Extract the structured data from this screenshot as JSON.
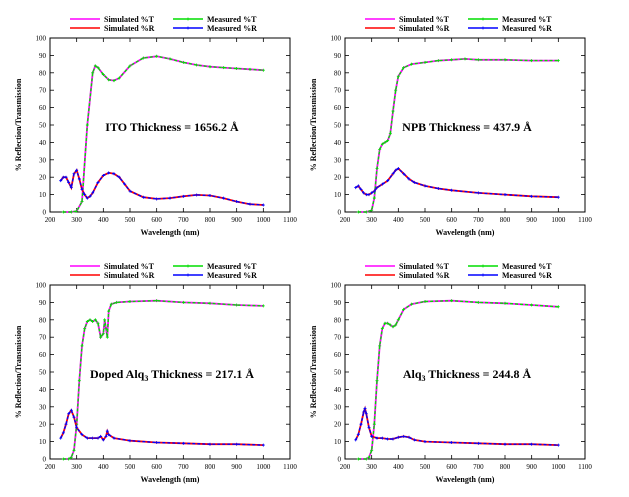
{
  "chart_data": [
    {
      "type": "line",
      "annotation": "ITO Thickness = 1656.2 Å",
      "xlabel": "Wavelength (nm)",
      "ylabel": "% Reflection/Transmission",
      "xlim": [
        200,
        1100
      ],
      "ylim": [
        0,
        100
      ],
      "xticks": [
        "200",
        "300",
        "400",
        "500",
        "600",
        "700",
        "800",
        "900",
        "1000",
        "1100"
      ],
      "yticks": [
        "0",
        "10",
        "20",
        "30",
        "40",
        "50",
        "60",
        "70",
        "80",
        "90",
        "100"
      ],
      "legend": [
        "Simulated %T",
        "Measured %T",
        "Simulated %R",
        "Measured %R"
      ],
      "series": [
        {
          "name": "Simulated %T",
          "color": "#ff00ff",
          "kind": "T",
          "x": [
            250,
            280,
            300,
            320,
            340,
            360,
            370,
            380,
            400,
            420,
            440,
            460,
            500,
            550,
            600,
            650,
            700,
            750,
            800,
            850,
            900,
            950,
            1000
          ],
          "y": [
            0,
            0,
            0.5,
            6,
            50,
            80,
            84,
            83,
            79,
            76,
            75.5,
            77,
            84,
            88.5,
            89.5,
            88,
            86,
            84.5,
            83.5,
            83,
            82.5,
            82,
            81.5
          ]
        },
        {
          "name": "Measured %T",
          "color": "#00dd00",
          "kind": "T",
          "x": [
            250,
            280,
            300,
            320,
            340,
            360,
            370,
            380,
            400,
            420,
            440,
            460,
            500,
            550,
            600,
            650,
            700,
            750,
            800,
            850,
            900,
            950,
            1000
          ],
          "y": [
            0,
            0,
            0.5,
            6,
            50,
            80,
            84,
            83,
            79,
            76,
            75.5,
            77,
            84,
            88.5,
            89.5,
            88,
            86,
            84.5,
            83.5,
            83,
            82.5,
            82,
            81.5
          ]
        },
        {
          "name": "Simulated %R",
          "color": "#ff0000",
          "kind": "R",
          "x": [
            240,
            250,
            260,
            270,
            280,
            290,
            300,
            310,
            320,
            330,
            340,
            350,
            360,
            380,
            400,
            420,
            440,
            460,
            480,
            500,
            550,
            600,
            650,
            700,
            750,
            800,
            850,
            900,
            950,
            1000
          ],
          "y": [
            18,
            20,
            20,
            17,
            14,
            22,
            24,
            19,
            13,
            10,
            8,
            9,
            11,
            17,
            21,
            22.5,
            22,
            20,
            16,
            12,
            8.5,
            7.5,
            8,
            9,
            9.8,
            9.5,
            8,
            6,
            4.5,
            4
          ]
        },
        {
          "name": "Measured %R",
          "color": "#0000ff",
          "kind": "R",
          "x": [
            240,
            250,
            260,
            270,
            280,
            290,
            300,
            310,
            320,
            330,
            340,
            350,
            360,
            380,
            400,
            420,
            440,
            460,
            480,
            500,
            550,
            600,
            650,
            700,
            750,
            800,
            850,
            900,
            950,
            1000
          ],
          "y": [
            18,
            20,
            20,
            17,
            14,
            22,
            24,
            19,
            13,
            10,
            8,
            9,
            11,
            17,
            21,
            22.5,
            22,
            20,
            16,
            12,
            8.5,
            7.5,
            8,
            9,
            9.8,
            9.5,
            8,
            6,
            4.5,
            4
          ]
        }
      ]
    },
    {
      "type": "line",
      "annotation": "NPB Thickness = 437.9 Å",
      "xlabel": "Wavelength (nm)",
      "ylabel": "% Reflection/Transmission",
      "xlim": [
        200,
        1100
      ],
      "ylim": [
        0,
        100
      ],
      "xticks": [
        "200",
        "300",
        "400",
        "500",
        "600",
        "700",
        "800",
        "900",
        "1000",
        "1100"
      ],
      "yticks": [
        "0",
        "10",
        "20",
        "30",
        "40",
        "50",
        "60",
        "70",
        "80",
        "90",
        "100"
      ],
      "legend": [
        "Simulated %T",
        "Measured %T",
        "Simulated %R",
        "Measured %R"
      ],
      "series": [
        {
          "name": "Simulated %T",
          "color": "#ff00ff",
          "kind": "T",
          "x": [
            250,
            280,
            300,
            310,
            320,
            330,
            340,
            350,
            360,
            370,
            380,
            390,
            400,
            420,
            450,
            500,
            550,
            600,
            650,
            700,
            800,
            900,
            1000
          ],
          "y": [
            0,
            0,
            1,
            8,
            25,
            36,
            39,
            40,
            41,
            45,
            58,
            70,
            78,
            83,
            85,
            86,
            87,
            87.5,
            88,
            87.5,
            87.5,
            87,
            87
          ]
        },
        {
          "name": "Measured %T",
          "color": "#00dd00",
          "kind": "T",
          "x": [
            250,
            280,
            300,
            310,
            320,
            330,
            340,
            350,
            360,
            370,
            380,
            390,
            400,
            420,
            450,
            500,
            550,
            600,
            650,
            700,
            800,
            900,
            1000
          ],
          "y": [
            0,
            0,
            1,
            8,
            25,
            36,
            39,
            40,
            41,
            45,
            58,
            70,
            78,
            83,
            85,
            86,
            87,
            87.5,
            88,
            87.5,
            87.5,
            87,
            87
          ]
        },
        {
          "name": "Simulated %R",
          "color": "#ff0000",
          "kind": "R",
          "x": [
            240,
            250,
            260,
            270,
            280,
            290,
            300,
            310,
            320,
            340,
            360,
            380,
            390,
            400,
            420,
            440,
            460,
            500,
            550,
            600,
            700,
            800,
            900,
            1000
          ],
          "y": [
            14,
            15,
            13,
            11,
            10,
            10,
            11,
            12,
            14,
            16,
            18,
            22,
            24,
            25,
            22,
            19,
            17,
            15,
            13.5,
            12.5,
            11,
            10,
            9,
            8.5
          ]
        },
        {
          "name": "Measured %R",
          "color": "#0000ff",
          "kind": "R",
          "x": [
            240,
            250,
            260,
            270,
            280,
            290,
            300,
            310,
            320,
            340,
            360,
            380,
            390,
            400,
            420,
            440,
            460,
            500,
            550,
            600,
            700,
            800,
            900,
            1000
          ],
          "y": [
            14,
            15,
            13,
            11,
            10,
            10,
            11,
            12,
            14,
            16,
            18,
            22,
            24,
            25,
            22,
            19,
            17,
            15,
            13.5,
            12.5,
            11,
            10,
            9,
            8.5
          ]
        }
      ]
    },
    {
      "type": "line",
      "annotation": "Doped Alq₃ Thickness = 217.1 Å",
      "xlabel": "Wavelength (nm)",
      "ylabel": "% Reflection/Transmission",
      "xlim": [
        200,
        1100
      ],
      "ylim": [
        0,
        100
      ],
      "xticks": [
        "200",
        "300",
        "400",
        "500",
        "600",
        "700",
        "800",
        "900",
        "1000",
        "1100"
      ],
      "yticks": [
        "0",
        "10",
        "20",
        "30",
        "40",
        "50",
        "60",
        "70",
        "80",
        "90",
        "100"
      ],
      "legend": [
        "Simulated %T",
        "Measured %T",
        "Simulated %R",
        "Measured %R"
      ],
      "series": [
        {
          "name": "Simulated %T",
          "color": "#ff00ff",
          "kind": "T",
          "x": [
            250,
            270,
            280,
            290,
            300,
            310,
            320,
            330,
            340,
            350,
            360,
            370,
            380,
            390,
            400,
            405,
            410,
            415,
            420,
            430,
            450,
            500,
            600,
            700,
            800,
            900,
            1000
          ],
          "y": [
            0,
            0,
            1,
            5,
            20,
            45,
            65,
            75,
            79,
            80,
            79,
            80,
            78,
            70,
            72,
            80,
            75,
            70,
            85,
            89,
            90,
            90.5,
            91,
            90,
            89.5,
            88.5,
            88
          ]
        },
        {
          "name": "Measured %T",
          "color": "#00dd00",
          "kind": "T",
          "x": [
            250,
            270,
            280,
            290,
            300,
            310,
            320,
            330,
            340,
            350,
            360,
            370,
            380,
            390,
            400,
            405,
            410,
            415,
            420,
            430,
            450,
            500,
            600,
            700,
            800,
            900,
            1000
          ],
          "y": [
            0,
            0,
            1,
            5,
            20,
            45,
            65,
            75,
            79,
            80,
            79,
            80,
            78,
            70,
            72,
            80,
            75,
            70,
            85,
            89,
            90,
            90.5,
            91,
            90,
            89.5,
            88.5,
            88
          ]
        },
        {
          "name": "Simulated %R",
          "color": "#ff0000",
          "kind": "R",
          "x": [
            240,
            250,
            260,
            270,
            280,
            290,
            300,
            320,
            340,
            360,
            380,
            390,
            400,
            410,
            415,
            420,
            440,
            500,
            600,
            700,
            800,
            900,
            1000
          ],
          "y": [
            12,
            15,
            20,
            26,
            28,
            24,
            18,
            14,
            12,
            12,
            12,
            13,
            11,
            13,
            16,
            14,
            12,
            10.5,
            9.5,
            9,
            8.5,
            8.5,
            8
          ]
        },
        {
          "name": "Measured %R",
          "color": "#0000ff",
          "kind": "R",
          "x": [
            240,
            250,
            260,
            270,
            280,
            290,
            300,
            320,
            340,
            360,
            380,
            390,
            400,
            410,
            415,
            420,
            440,
            500,
            600,
            700,
            800,
            900,
            1000
          ],
          "y": [
            12,
            15,
            20,
            26,
            28,
            24,
            18,
            14,
            12,
            12,
            12,
            13,
            11,
            13,
            16,
            14,
            12,
            10.5,
            9.5,
            9,
            8.5,
            8.5,
            8
          ]
        }
      ]
    },
    {
      "type": "line",
      "annotation": "Alq₃ Thickness = 244.8 Å",
      "xlabel": "Wavelength (nm)",
      "ylabel": "% Reflection/Transmission",
      "xlim": [
        200,
        1100
      ],
      "ylim": [
        0,
        100
      ],
      "xticks": [
        "200",
        "300",
        "400",
        "500",
        "600",
        "700",
        "800",
        "900",
        "1000",
        "1100"
      ],
      "yticks": [
        "0",
        "10",
        "20",
        "30",
        "40",
        "50",
        "60",
        "70",
        "80",
        "90",
        "100"
      ],
      "legend": [
        "Simulated %T",
        "Measured %T",
        "Simulated %R",
        "Measured %R"
      ],
      "series": [
        {
          "name": "Simulated %T",
          "color": "#ff00ff",
          "kind": "T",
          "x": [
            250,
            280,
            290,
            300,
            310,
            320,
            330,
            340,
            350,
            360,
            370,
            380,
            390,
            400,
            420,
            450,
            500,
            600,
            700,
            800,
            900,
            1000
          ],
          "y": [
            0,
            0,
            1,
            5,
            20,
            45,
            65,
            75,
            78,
            78,
            77,
            76,
            77,
            80,
            86,
            89,
            90.5,
            91,
            90,
            89.5,
            88.5,
            87.5
          ]
        },
        {
          "name": "Measured %T",
          "color": "#00dd00",
          "kind": "T",
          "x": [
            250,
            280,
            290,
            300,
            310,
            320,
            330,
            340,
            350,
            360,
            370,
            380,
            390,
            400,
            420,
            450,
            500,
            600,
            700,
            800,
            900,
            1000
          ],
          "y": [
            0,
            0,
            1,
            5,
            20,
            45,
            65,
            75,
            78,
            78,
            77,
            76,
            77,
            80,
            86,
            89,
            90.5,
            91,
            90,
            89.5,
            88.5,
            87.5
          ]
        },
        {
          "name": "Simulated %R",
          "color": "#ff0000",
          "kind": "R",
          "x": [
            240,
            250,
            260,
            270,
            275,
            280,
            290,
            300,
            320,
            340,
            360,
            380,
            400,
            420,
            440,
            460,
            500,
            600,
            700,
            800,
            900,
            1000
          ],
          "y": [
            11,
            14,
            20,
            27,
            29,
            26,
            18,
            13,
            12,
            12,
            11.5,
            11.5,
            12.5,
            13,
            12.5,
            11,
            10,
            9.5,
            9,
            8.5,
            8.5,
            8
          ]
        },
        {
          "name": "Measured %R",
          "color": "#0000ff",
          "kind": "R",
          "x": [
            240,
            250,
            260,
            270,
            275,
            280,
            290,
            300,
            320,
            340,
            360,
            380,
            400,
            420,
            440,
            460,
            500,
            600,
            700,
            800,
            900,
            1000
          ],
          "y": [
            11,
            14,
            20,
            27,
            29,
            26,
            18,
            13,
            12,
            12,
            11.5,
            11.5,
            12.5,
            13,
            12.5,
            11,
            10,
            9.5,
            9,
            8.5,
            8.5,
            8
          ]
        }
      ]
    }
  ]
}
